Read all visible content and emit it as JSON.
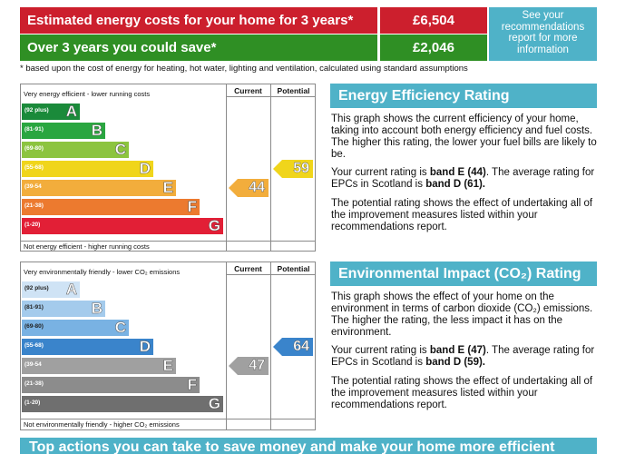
{
  "costs": {
    "row1": {
      "label": "Estimated energy costs for your home for 3 years*",
      "value": "£6,504"
    },
    "row2": {
      "label": "Over 3 years you could save*",
      "value": "£2,046"
    },
    "see_box": "See your recommendations report for more information",
    "footnote": "* based upon the cost of energy for heating, hot water, lighting and ventilation, calculated using standard assumptions"
  },
  "energy_graph": {
    "top_text": "Very energy efficient - lower running costs",
    "bottom_text": "Not energy efficient - higher running costs",
    "col_current": "Current",
    "col_potential": "Potential",
    "bands": [
      {
        "range": "(92 plus)",
        "letter": "A",
        "color": "#1a8a3a"
      },
      {
        "range": "(81-91)",
        "letter": "B",
        "color": "#2aa640"
      },
      {
        "range": "(69-80)",
        "letter": "C",
        "color": "#8cc43f"
      },
      {
        "range": "(55-68)",
        "letter": "D",
        "color": "#f0d51b"
      },
      {
        "range": "(39-54",
        "letter": "E",
        "color": "#f2ad3c"
      },
      {
        "range": "(21-38)",
        "letter": "F",
        "color": "#ec7a2f"
      },
      {
        "range": "(1-20)",
        "letter": "G",
        "color": "#e21f36"
      }
    ],
    "current": {
      "value": "44",
      "band": "E",
      "color": "#f2ad3c"
    },
    "potential": {
      "value": "59",
      "band": "D",
      "color": "#f0d51b"
    }
  },
  "env_graph": {
    "top_text": "Very environmentally friendly - lower CO₂ emissions",
    "bottom_text": "Not environmentally friendly - higher CO₂ emissions",
    "col_current": "Current",
    "col_potential": "Potential",
    "bands": [
      {
        "range": "(92 plus)",
        "letter": "A",
        "color": "#cfe3f5"
      },
      {
        "range": "(81-91)",
        "letter": "B",
        "color": "#a4cbec"
      },
      {
        "range": "(69-80)",
        "letter": "C",
        "color": "#79b2e3"
      },
      {
        "range": "(55-68)",
        "letter": "D",
        "color": "#3a84cb"
      },
      {
        "range": "(39-54",
        "letter": "E",
        "color": "#a0a0a0"
      },
      {
        "range": "(21-38)",
        "letter": "F",
        "color": "#8c8c8c"
      },
      {
        "range": "(1-20)",
        "letter": "G",
        "color": "#6f6f6f"
      }
    ],
    "current": {
      "value": "47",
      "band": "E",
      "color": "#a0a0a0"
    },
    "potential": {
      "value": "64",
      "band": "D",
      "color": "#3a84cb"
    }
  },
  "energy_panel": {
    "title": "Energy Efficiency Rating",
    "p1": "This graph shows the current efficiency of your home, taking into account both energy efficiency and fuel costs. The higher this rating, the lower your fuel bills are likely to be.",
    "p2_pre": "Your current rating is ",
    "p2_b1": "band E (44)",
    "p2_mid": ". The average rating for EPCs in Scotland is ",
    "p2_b2": "band D (61).",
    "p3": "The potential rating shows the effect of undertaking all of the improvement measures listed within your recommendations report."
  },
  "env_panel": {
    "title": "Environmental Impact (CO₂) Rating",
    "p1": "This graph shows the effect of your home on the environment in terms of carbon dioxide (CO₂) emissions. The higher the rating, the less impact it has on the environment.",
    "p2_pre": "Your current rating is ",
    "p2_b1": "band E (47)",
    "p2_mid": ". The average rating for EPCs in Scotland is ",
    "p2_b2": "band D (59).",
    "p3": "The potential rating shows the effect of undertaking all of the improvement measures listed within your recommendations report."
  },
  "bottom_bar": "Top actions you can take to save money and make your home more efficient"
}
